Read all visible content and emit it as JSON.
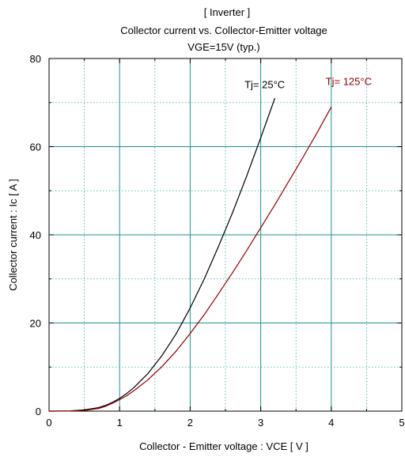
{
  "chart_data": {
    "type": "line",
    "title_lines": [
      "[ Inverter ]",
      "Collector current  vs.  Collector-Emitter voltage",
      "VGE=15V  (typ.)"
    ],
    "xlabel": "Collector - Emitter voltage  :  VCE  [ V ]",
    "ylabel": "Collector current  :  Ic  [ A ]",
    "xlim": [
      0,
      5
    ],
    "ylim": [
      0,
      80
    ],
    "xticks": [
      "0",
      "1",
      "2",
      "3",
      "4",
      "5"
    ],
    "yticks": [
      "0",
      "20",
      "40",
      "60",
      "80"
    ],
    "grid": true,
    "series": [
      {
        "name": "Tj= 25°C",
        "color": "#000000",
        "x": [
          0.0,
          0.3,
          0.5,
          0.7,
          0.8,
          0.9,
          1.0,
          1.1,
          1.2,
          1.4,
          1.6,
          1.8,
          2.0,
          2.2,
          2.4,
          2.6,
          2.8,
          3.0,
          3.1,
          3.2
        ],
        "y": [
          0.0,
          0.05,
          0.3,
          0.8,
          1.3,
          2.0,
          2.9,
          4.0,
          5.3,
          8.5,
          12.6,
          17.5,
          23.4,
          30.0,
          37.3,
          45.0,
          53.3,
          62.0,
          66.5,
          71.0
        ]
      },
      {
        "name": "Tj= 125°C",
        "color": "#8b0000",
        "x": [
          0.0,
          0.3,
          0.5,
          0.7,
          0.8,
          0.9,
          1.0,
          1.1,
          1.2,
          1.4,
          1.6,
          1.8,
          2.0,
          2.2,
          2.4,
          2.6,
          2.8,
          3.0,
          3.2,
          3.4,
          3.6,
          3.8,
          4.0
        ],
        "y": [
          0.0,
          0.03,
          0.15,
          0.6,
          1.1,
          1.8,
          2.6,
          3.5,
          4.6,
          7.1,
          10.1,
          13.6,
          17.6,
          21.9,
          26.6,
          31.4,
          36.4,
          41.6,
          46.8,
          52.2,
          57.6,
          63.2,
          69.0
        ]
      }
    ],
    "annotations": [
      {
        "text": "Tj= 25°C",
        "color": "#000000",
        "at_x": 2.77,
        "at_y": 73.3
      },
      {
        "text": "Tj= 125°C",
        "color": "#8b0000",
        "at_x": 3.92,
        "at_y": 74.0
      }
    ]
  }
}
